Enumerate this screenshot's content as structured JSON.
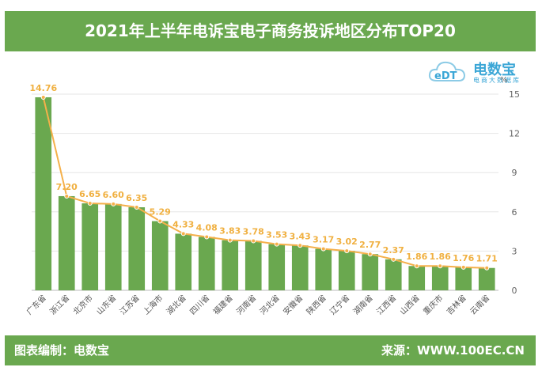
{
  "header": {
    "title": "2021年上半年电诉宝电子商务投诉地区分布TOP20"
  },
  "footer": {
    "left": "图表编制：电数宝",
    "right": "来源：WWW.100EC.CN"
  },
  "logo": {
    "name": "电数宝",
    "sub": "电商大数据库",
    "icon": "cloud-logo-icon"
  },
  "chart_data": {
    "type": "bar",
    "title": "",
    "xlabel": "",
    "ylabel": "%",
    "ylim": [
      0,
      15
    ],
    "yticks": [
      0,
      3,
      6,
      9,
      12,
      15
    ],
    "categories": [
      "广东省",
      "浙江省",
      "北京市",
      "山东省",
      "江苏省",
      "上海市",
      "湖北省",
      "四川省",
      "福建省",
      "河南省",
      "河北省",
      "安徽省",
      "陕西省",
      "辽宁省",
      "湖南省",
      "江西省",
      "山西省",
      "重庆市",
      "吉林省",
      "云南省"
    ],
    "values": [
      14.76,
      7.2,
      6.65,
      6.6,
      6.35,
      5.29,
      4.33,
      4.08,
      3.83,
      3.78,
      3.53,
      3.43,
      3.17,
      3.02,
      2.77,
      2.37,
      1.86,
      1.86,
      1.76,
      1.71
    ],
    "labels": [
      "14.76",
      "7.20",
      "6.65",
      "6.60",
      "6.35",
      "5.29",
      "4.33",
      "4.08",
      "3.83",
      "3.78",
      "3.53",
      "3.43",
      "3.17",
      "3.02",
      "2.77",
      "2.37",
      "1.86",
      "1.86",
      "1.76",
      "1.71"
    ],
    "colors": {
      "bar": "#6aa84f",
      "line": "#f5b04a"
    },
    "grid": true,
    "legend": "none"
  }
}
